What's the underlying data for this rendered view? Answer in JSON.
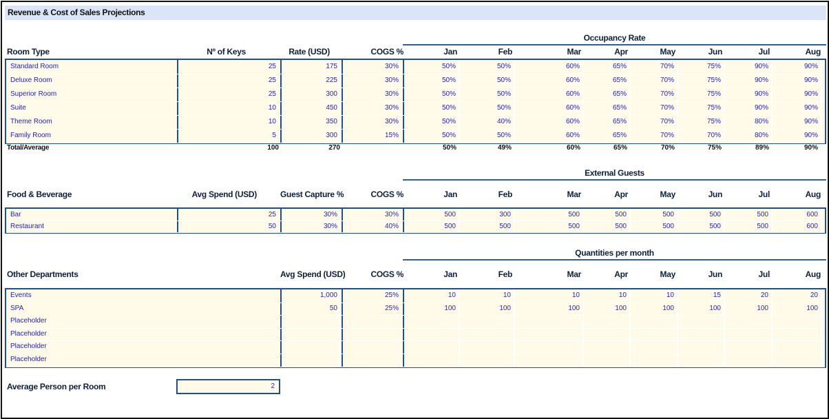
{
  "title": "Revenue & Cost of Sales Projections",
  "months": [
    "Jan",
    "Feb",
    "Mar",
    "Apr",
    "May",
    "Jun",
    "Jul",
    "Aug"
  ],
  "rooms": {
    "group_label": "Occupancy Rate",
    "headers": [
      "Room Type",
      "Nº of Keys",
      "Rate (USD)",
      "COGS %"
    ],
    "rows": [
      {
        "name": "Standard Room",
        "keys": "25",
        "rate": "175",
        "cogs": "30%",
        "months": [
          "50%",
          "50%",
          "60%",
          "65%",
          "70%",
          "75%",
          "90%",
          "90%"
        ]
      },
      {
        "name": "Deluxe Room",
        "keys": "25",
        "rate": "225",
        "cogs": "30%",
        "months": [
          "50%",
          "50%",
          "60%",
          "65%",
          "70%",
          "75%",
          "90%",
          "90%"
        ]
      },
      {
        "name": "Superior Room",
        "keys": "25",
        "rate": "300",
        "cogs": "30%",
        "months": [
          "50%",
          "50%",
          "60%",
          "65%",
          "70%",
          "75%",
          "90%",
          "90%"
        ]
      },
      {
        "name": "Suite",
        "keys": "10",
        "rate": "450",
        "cogs": "30%",
        "months": [
          "50%",
          "50%",
          "60%",
          "65%",
          "70%",
          "75%",
          "90%",
          "90%"
        ]
      },
      {
        "name": "Theme Room",
        "keys": "10",
        "rate": "350",
        "cogs": "30%",
        "months": [
          "50%",
          "40%",
          "60%",
          "65%",
          "70%",
          "75%",
          "80%",
          "90%"
        ]
      },
      {
        "name": "Family Room",
        "keys": "5",
        "rate": "300",
        "cogs": "15%",
        "months": [
          "50%",
          "50%",
          "60%",
          "65%",
          "70%",
          "70%",
          "80%",
          "90%"
        ]
      }
    ],
    "total": {
      "label": "Total/Average",
      "keys": "100",
      "rate": "270",
      "months": [
        "50%",
        "49%",
        "60%",
        "65%",
        "70%",
        "75%",
        "89%",
        "90%"
      ]
    }
  },
  "fnb": {
    "group_label": "External Guests",
    "headers": [
      "Food & Beverage",
      "Avg Spend (USD)",
      "Guest Capture %",
      "COGS %"
    ],
    "rows": [
      {
        "name": "Bar",
        "spend": "25",
        "capture": "30%",
        "cogs": "30%",
        "months": [
          "500",
          "300",
          "500",
          "500",
          "500",
          "500",
          "500",
          "600"
        ]
      },
      {
        "name": "Restaurant",
        "spend": "50",
        "capture": "30%",
        "cogs": "40%",
        "months": [
          "500",
          "500",
          "500",
          "500",
          "500",
          "500",
          "500",
          "600"
        ]
      }
    ]
  },
  "other": {
    "group_label": "Quantities per month",
    "headers": [
      "Other Departments",
      "Avg Spend (USD)",
      "COGS %"
    ],
    "rows": [
      {
        "name": "Events",
        "spend": "1,000",
        "cogs": "25%",
        "months": [
          "10",
          "10",
          "10",
          "10",
          "10",
          "15",
          "20",
          "20"
        ]
      },
      {
        "name": "SPA",
        "spend": "50",
        "cogs": "25%",
        "months": [
          "100",
          "100",
          "100",
          "100",
          "100",
          "100",
          "100",
          "100"
        ]
      },
      {
        "name": "Placeholder",
        "spend": "",
        "cogs": "",
        "months": [
          "",
          "",
          "",
          "",
          "",
          "",
          "",
          ""
        ]
      },
      {
        "name": "Placeholder",
        "spend": "",
        "cogs": "",
        "months": [
          "",
          "",
          "",
          "",
          "",
          "",
          "",
          ""
        ]
      },
      {
        "name": "Placeholder",
        "spend": "",
        "cogs": "",
        "months": [
          "",
          "",
          "",
          "",
          "",
          "",
          "",
          ""
        ]
      },
      {
        "name": "Placeholder",
        "spend": "",
        "cogs": "",
        "months": [
          "",
          "",
          "",
          "",
          "",
          "",
          "",
          ""
        ]
      }
    ]
  },
  "avg_person": {
    "label": "Average Person per Room",
    "value": "2"
  }
}
